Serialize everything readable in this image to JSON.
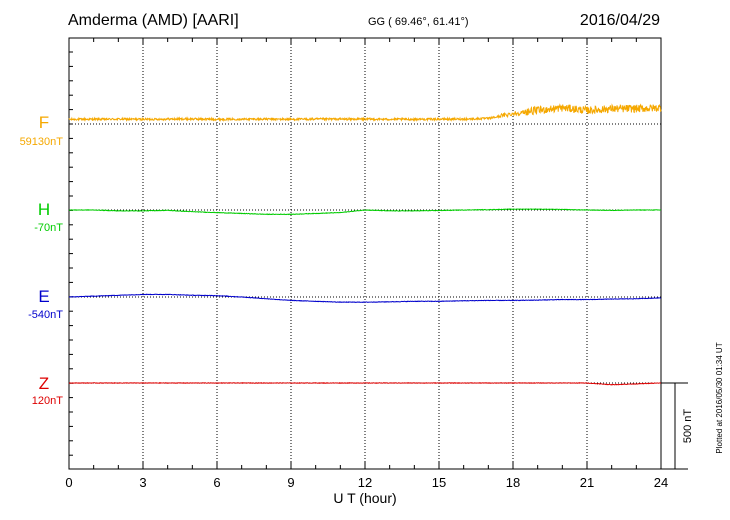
{
  "header": {
    "station": "Amderma (AMD)  [AARI]",
    "coords": "GG ( 69.46°,  61.41°)",
    "date": "2016/04/29"
  },
  "footer": {
    "xlabel": "U T (hour)",
    "plotted_note": "Plotted at 2016/05/30 01:34 UT"
  },
  "scale_bar": {
    "label": "500 nT",
    "value_nT": 500
  },
  "chart_data": {
    "type": "line",
    "xlim": [
      0,
      24
    ],
    "xticks": [
      0,
      3,
      6,
      9,
      12,
      15,
      18,
      21,
      24
    ],
    "grid": "vertical dotted at each 3 h; dotted baseline per component",
    "series": [
      {
        "name": "F",
        "baseline_label": "59130nT",
        "color": "#f5a800",
        "noise": "high",
        "x": [
          0,
          1,
          2,
          3,
          4,
          5,
          6,
          7,
          8,
          9,
          10,
          11,
          12,
          13,
          14,
          15,
          16,
          17,
          18,
          19,
          20,
          21,
          22,
          23,
          24
        ],
        "y": [
          25,
          25,
          26,
          25,
          26,
          27,
          25,
          26,
          26,
          25,
          26,
          26,
          26,
          25,
          25,
          26,
          26,
          30,
          55,
          70,
          85,
          70,
          80,
          80,
          85
        ]
      },
      {
        "name": "H",
        "baseline_label": "-70nT",
        "color": "#00cc00",
        "noise": "low",
        "x": [
          0,
          1,
          2,
          3,
          4,
          5,
          6,
          7,
          8,
          9,
          10,
          11,
          12,
          13,
          14,
          15,
          16,
          17,
          18,
          19,
          20,
          21,
          22,
          23,
          24
        ],
        "y": [
          0,
          0,
          -5,
          -5,
          -2,
          -10,
          -15,
          -20,
          -25,
          -25,
          -20,
          -15,
          0,
          -5,
          -5,
          -3,
          0,
          2,
          5,
          5,
          3,
          0,
          -2,
          0,
          0
        ]
      },
      {
        "name": "E",
        "baseline_label": "-540nT",
        "color": "#0000cc",
        "noise": "low",
        "x": [
          0,
          1,
          2,
          3,
          4,
          5,
          6,
          7,
          8,
          9,
          10,
          11,
          12,
          13,
          14,
          15,
          16,
          17,
          18,
          19,
          20,
          21,
          22,
          23,
          24
        ],
        "y": [
          0,
          5,
          10,
          15,
          15,
          10,
          8,
          0,
          -10,
          -20,
          -25,
          -30,
          -30,
          -28,
          -25,
          -25,
          -22,
          -20,
          -20,
          -18,
          -15,
          -15,
          -12,
          -10,
          -5
        ]
      },
      {
        "name": "Z",
        "baseline_label": "120nT",
        "color": "#dd0000",
        "noise": "low",
        "x": [
          0,
          1,
          2,
          3,
          4,
          5,
          6,
          7,
          8,
          9,
          10,
          11,
          12,
          13,
          14,
          15,
          16,
          17,
          18,
          19,
          20,
          21,
          22,
          23,
          24
        ],
        "y": [
          0,
          0,
          0,
          0,
          0,
          0,
          0,
          0,
          0,
          0,
          0,
          0,
          0,
          0,
          0,
          0,
          0,
          0,
          0,
          0,
          0,
          0,
          -10,
          -5,
          0
        ]
      }
    ]
  }
}
